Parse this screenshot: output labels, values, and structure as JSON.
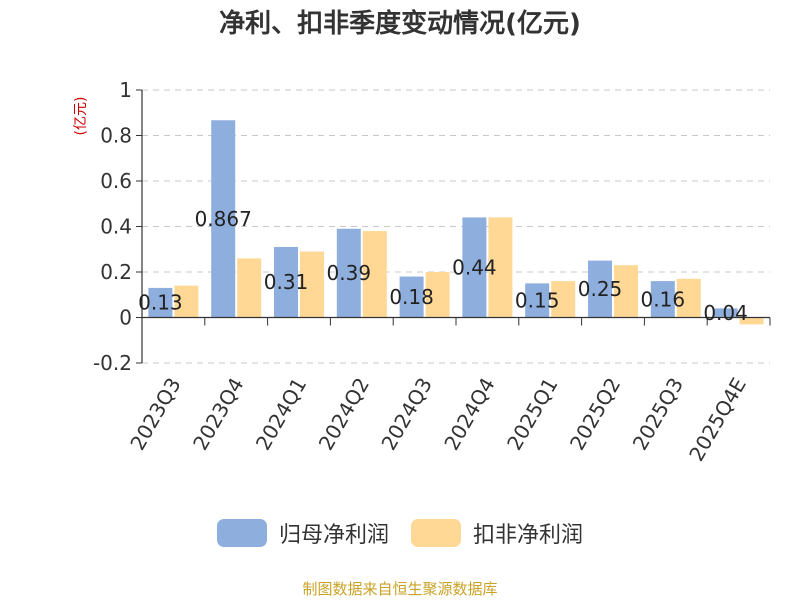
{
  "chart_data": {
    "type": "bar",
    "title": "净利、扣非季度变动情况(亿元)",
    "ylabel": "(亿元)",
    "categories": [
      "2023Q3",
      "2023Q4",
      "2024Q1",
      "2024Q2",
      "2024Q3",
      "2024Q4",
      "2025Q1",
      "2025Q2",
      "2025Q3",
      "2025Q4E"
    ],
    "ylim": [
      -0.2,
      1
    ],
    "yticks": [
      "1",
      "0.8",
      "0.6",
      "0.4",
      "0.2",
      "0",
      "-0.2"
    ],
    "grid": true,
    "legend_position": "bottom",
    "series": [
      {
        "name": "归母净利润",
        "color": "#8eaedd",
        "values": [
          0.13,
          0.867,
          0.31,
          0.39,
          0.18,
          0.44,
          0.15,
          0.25,
          0.16,
          0.04
        ],
        "labels": [
          "0.13",
          "0.867",
          "0.31",
          "0.39",
          "0.18",
          "0.44",
          "0.15",
          "0.25",
          "0.16",
          "0.04"
        ]
      },
      {
        "name": "扣非净利润",
        "color": "#ffd896",
        "values": [
          0.14,
          0.26,
          0.29,
          0.38,
          0.2,
          0.44,
          0.16,
          0.23,
          0.17,
          -0.03
        ]
      }
    ]
  },
  "footer": {
    "source": "制图数据来自恒生聚源数据库"
  }
}
